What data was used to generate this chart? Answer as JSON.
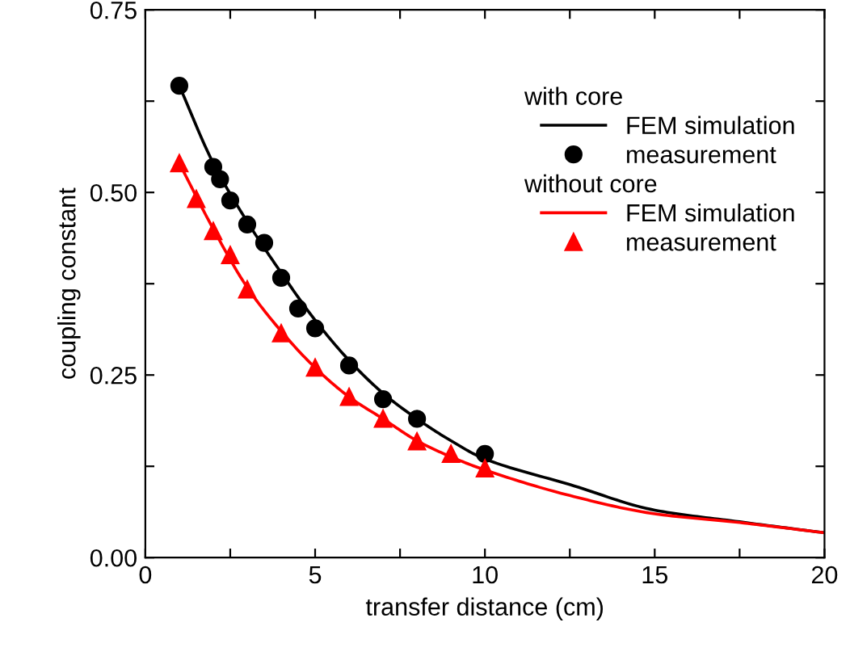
{
  "chart_data": {
    "type": "line",
    "xlabel": "transfer distance (cm)",
    "ylabel": "coupling constant",
    "annotations": [
      "with core",
      "without core"
    ],
    "series": [
      {
        "name": "FEM simulation",
        "color": "#000000",
        "marker": "none",
        "x": [
          1,
          2,
          3,
          4,
          5,
          6,
          7,
          8,
          9,
          10,
          12.5,
          15,
          17.5,
          20
        ],
        "values": [
          0.646,
          0.54,
          0.46,
          0.39,
          0.325,
          0.27,
          0.225,
          0.19,
          0.16,
          0.135,
          0.1,
          0.065,
          0.049,
          0.034
        ]
      },
      {
        "name": "measurement",
        "type": "scatter",
        "color": "#000000",
        "marker": "circle",
        "x": [
          1,
          2,
          2.2,
          2.5,
          3,
          3.5,
          4,
          4.5,
          5,
          6,
          7,
          8,
          10
        ],
        "values": [
          0.646,
          0.535,
          0.518,
          0.489,
          0.456,
          0.431,
          0.383,
          0.341,
          0.314,
          0.263,
          0.217,
          0.19,
          0.142
        ]
      },
      {
        "name": "FEM simulation",
        "color": "#ff0000",
        "marker": "none",
        "x": [
          1,
          2,
          3,
          4,
          5,
          6,
          7,
          8,
          9,
          10,
          12.5,
          15,
          17.5,
          20
        ],
        "values": [
          0.54,
          0.45,
          0.37,
          0.31,
          0.26,
          0.22,
          0.19,
          0.16,
          0.138,
          0.12,
          0.085,
          0.06,
          0.048,
          0.034
        ]
      },
      {
        "name": "measurement",
        "type": "scatter",
        "color": "#ff0000",
        "marker": "triangle",
        "x": [
          1,
          1.5,
          2,
          2.5,
          3,
          4,
          5,
          6,
          7,
          8,
          9,
          10
        ],
        "values": [
          0.54,
          0.491,
          0.447,
          0.414,
          0.367,
          0.307,
          0.26,
          0.22,
          0.19,
          0.159,
          0.142,
          0.122
        ]
      }
    ],
    "xlim": [
      0,
      20
    ],
    "ylim": [
      0,
      0.75
    ],
    "xticks": [
      0,
      {
        "value": 2.5,
        "label": null
      },
      5,
      {
        "value": 7.5,
        "label": null
      },
      10,
      {
        "value": 12.5,
        "label": null
      },
      15,
      {
        "value": 17.5,
        "label": null
      },
      20
    ],
    "yticks": [
      {
        "value": 0,
        "label": "0.00"
      },
      {
        "value": 0.125,
        "label": null
      },
      {
        "value": 0.25,
        "label": "0.25"
      },
      {
        "value": 0.375,
        "label": null
      },
      {
        "value": 0.5,
        "label": "0.50"
      },
      {
        "value": 0.625,
        "label": null
      },
      {
        "value": 0.75,
        "label": "0.75"
      }
    ],
    "grid": false,
    "legend": "top right"
  }
}
